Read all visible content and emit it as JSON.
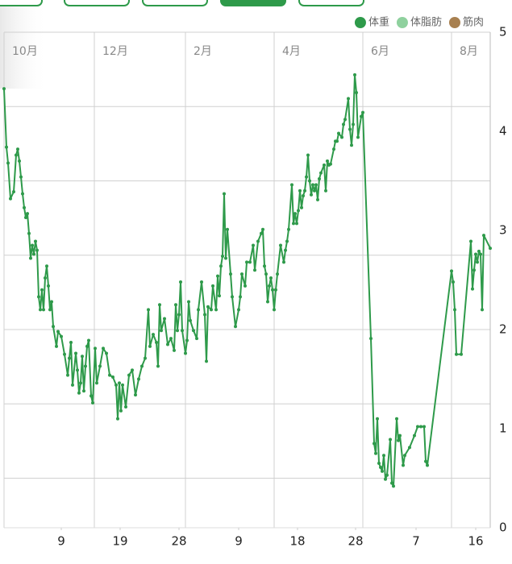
{
  "chart_data": {
    "type": "line",
    "x": [
      0,
      3,
      5,
      8,
      12,
      15,
      17,
      19,
      21,
      23,
      25,
      27,
      29,
      31,
      33,
      35,
      37,
      39,
      41,
      43,
      45,
      47,
      49,
      51,
      53,
      55,
      57,
      59,
      61,
      65,
      67,
      71,
      75,
      79,
      81,
      83,
      85,
      89,
      91,
      93,
      95,
      97,
      99,
      101,
      103,
      105,
      108,
      110,
      113,
      115,
      119,
      123,
      127,
      131,
      135,
      139,
      141,
      143,
      145,
      147,
      151,
      155,
      159,
      163,
      167,
      171,
      175,
      179,
      181,
      185,
      189,
      191,
      193,
      195,
      199,
      203,
      207,
      211,
      213,
      215,
      217,
      219,
      221,
      225,
      227,
      229,
      231,
      235,
      239,
      241,
      245,
      249,
      251,
      253,
      257,
      259,
      263,
      265,
      267,
      269,
      271,
      273,
      275,
      277,
      281,
      283,
      287,
      291,
      293,
      295,
      299,
      301,
      305,
      309,
      311,
      315,
      319,
      321,
      323,
      325,
      327,
      329,
      331,
      333,
      335,
      337,
      339,
      343,
      347,
      349,
      351,
      353,
      357,
      359,
      361,
      363,
      365,
      367,
      369,
      371,
      373,
      375,
      377,
      379,
      381,
      383,
      385,
      387,
      389,
      391,
      393,
      397,
      399,
      401,
      403,
      405,
      409,
      411,
      413,
      415,
      419,
      421,
      423,
      427,
      429,
      431,
      433,
      435,
      437,
      439,
      443,
      445,
      455,
      459,
      461,
      463,
      465,
      467,
      469,
      471,
      473,
      475,
      479,
      481,
      483,
      487,
      489,
      491,
      495,
      497,
      503,
      509,
      513,
      517,
      521,
      523,
      525,
      555,
      557,
      559,
      561,
      567,
      579,
      581,
      583,
      585,
      587,
      589,
      591,
      593,
      595,
      603
    ],
    "series": [
      {
        "name": "体重",
        "color": "#2e9a4a",
        "values": [
          4.43,
          3.84,
          3.68,
          3.32,
          3.39,
          3.76,
          3.82,
          3.7,
          3.54,
          3.37,
          3.23,
          3.13,
          3.17,
          2.97,
          2.72,
          2.85,
          2.76,
          2.89,
          2.8,
          2.33,
          2.2,
          2.4,
          2.2,
          2.52,
          2.64,
          2.44,
          2.2,
          2.28,
          2.03,
          1.83,
          1.98,
          1.93,
          1.75,
          1.54,
          1.71,
          1.87,
          1.44,
          1.76,
          1.59,
          1.36,
          1.46,
          1.73,
          1.38,
          1.63,
          1.83,
          1.89,
          1.33,
          1.26,
          1.81,
          1.46,
          1.63,
          1.81,
          1.76,
          1.54,
          1.52,
          1.44,
          1.1,
          1.46,
          1.18,
          1.44,
          1.22,
          1.54,
          1.59,
          1.34,
          1.5,
          1.63,
          1.71,
          2.2,
          1.83,
          1.95,
          1.87,
          1.63,
          2.25,
          1.99,
          2.11,
          1.85,
          1.91,
          1.79,
          2.25,
          1.99,
          2.15,
          2.48,
          1.99,
          1.76,
          1.89,
          2.28,
          2.09,
          1.99,
          1.91,
          2.2,
          2.48,
          2.15,
          1.68,
          2.23,
          2.2,
          2.44,
          2.2,
          2.54,
          2.34,
          2.64,
          2.74,
          3.37,
          2.72,
          3.01,
          2.56,
          2.33,
          2.03,
          2.2,
          2.33,
          2.56,
          2.44,
          2.68,
          2.68,
          2.85,
          2.6,
          2.89,
          2.97,
          3.01,
          2.64,
          2.56,
          2.28,
          2.44,
          2.52,
          2.4,
          2.2,
          2.4,
          2.56,
          2.85,
          2.68,
          2.8,
          2.89,
          3.01,
          3.46,
          3.07,
          3.17,
          3.07,
          3.2,
          3.4,
          3.23,
          3.35,
          3.4,
          3.54,
          3.76,
          3.5,
          3.36,
          3.46,
          3.4,
          3.46,
          3.31,
          3.52,
          3.58,
          3.66,
          3.4,
          3.7,
          3.66,
          3.67,
          3.82,
          3.9,
          3.9,
          3.98,
          3.94,
          4.07,
          4.12,
          4.33,
          4.02,
          3.86,
          4.07,
          4.57,
          4.39,
          3.94,
          4.15,
          4.19,
          1.91,
          0.85,
          0.75,
          1.1,
          0.65,
          0.61,
          0.57,
          0.73,
          0.49,
          0.53,
          0.89,
          0.45,
          0.42,
          1.1,
          0.88,
          0.93,
          0.63,
          0.73,
          0.81,
          0.93,
          1.02,
          1.02,
          1.02,
          0.67,
          0.63,
          2.59,
          2.48,
          2.2,
          1.75,
          1.75,
          2.89,
          2.41,
          2.6,
          2.76,
          2.68,
          2.79,
          2.76,
          2.2,
          2.95,
          2.82
        ]
      },
      {
        "name": "体脂肪",
        "color": "#8fd19e"
      },
      {
        "name": "筋肉",
        "color": "#a88050"
      }
    ],
    "xlim": [
      0,
      603
    ],
    "xticks": [
      {
        "value": 71,
        "label": "9"
      },
      {
        "value": 144,
        "label": "19"
      },
      {
        "value": 217,
        "label": "28"
      },
      {
        "value": 291,
        "label": "9"
      },
      {
        "value": 364,
        "label": "18"
      },
      {
        "value": 436,
        "label": "28"
      },
      {
        "value": 511,
        "label": "7"
      },
      {
        "value": 585,
        "label": "16"
      }
    ],
    "month_ticks": [
      {
        "value": 0,
        "label": "10月"
      },
      {
        "value": 112,
        "label": "12月"
      },
      {
        "value": 225,
        "label": "2月"
      },
      {
        "value": 335,
        "label": "4月"
      },
      {
        "value": 445,
        "label": "6月"
      },
      {
        "value": 555,
        "label": "8月"
      }
    ],
    "ylim": [
      0,
      5
    ],
    "yticks": [
      5,
      4,
      3,
      2,
      1,
      0
    ],
    "ygrid": [
      0.5,
      1.25,
      2.0,
      2.75,
      3.5,
      4.25,
      5.0
    ],
    "grid": true,
    "legend": "top-right"
  }
}
